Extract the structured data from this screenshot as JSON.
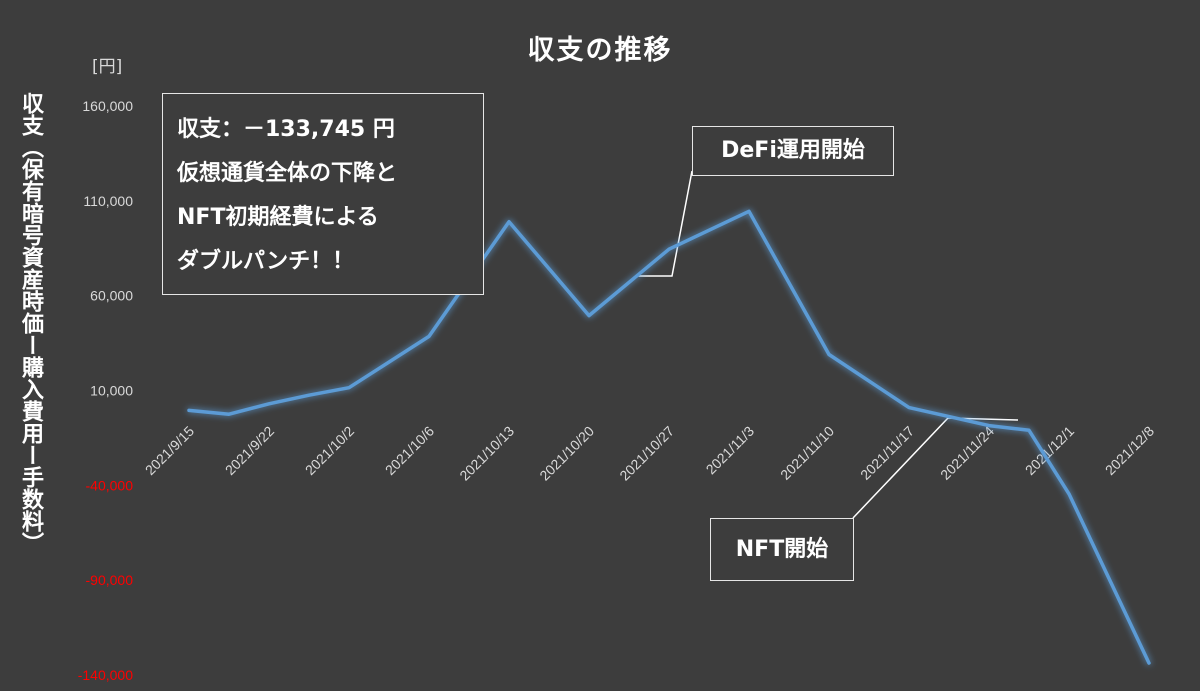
{
  "chart_data": {
    "type": "line",
    "title": "収支の推移",
    "unit_label": "[円]",
    "ylabel": "収支（保有暗号資産時価ー購入費用ー手数料）",
    "xlabel": "",
    "ylim": [
      -140000,
      160000
    ],
    "y_ticks": [
      "160,000",
      "110,000",
      "60,000",
      "10,000",
      "-40,000",
      "-90,000",
      "-140,000"
    ],
    "y_tick_values": [
      160000,
      110000,
      60000,
      10000,
      -40000,
      -90000,
      -140000
    ],
    "negative_tick_color": "#ff0000",
    "positive_tick_color": "#d9d9d9",
    "line_color": "#5b9bd5",
    "grid": false,
    "categories": [
      "2021/9/15",
      "2021/9/22",
      "2021/10/2",
      "2021/10/6",
      "2021/10/13",
      "2021/10/20",
      "2021/10/27",
      "2021/11/3",
      "2021/11/10",
      "2021/11/17",
      "2021/11/24",
      "2021/12/1",
      "2021/12/8"
    ],
    "tick_positions": [
      0,
      1,
      2,
      3,
      4,
      5,
      6,
      7,
      8,
      9,
      10,
      11,
      12
    ],
    "x_values": [
      0,
      0.5,
      1,
      1.5,
      2,
      3,
      4,
      5,
      6,
      7,
      8,
      9,
      10,
      10.5,
      11,
      12
    ],
    "y_values": [
      -500,
      -2500,
      3000,
      7500,
      11500,
      38500,
      99000,
      49500,
      84500,
      104500,
      29000,
      1000,
      -8500,
      -11000,
      -44500,
      -133745
    ],
    "annotations": [
      {
        "lines": [
          "収支：－133,745 円",
          "仮想通貨全体の下降と",
          "NFT初期経費による",
          "ダブルパンチ！！"
        ]
      },
      {
        "text": "DeFi運用開始"
      },
      {
        "text": "NFT開始"
      }
    ]
  }
}
